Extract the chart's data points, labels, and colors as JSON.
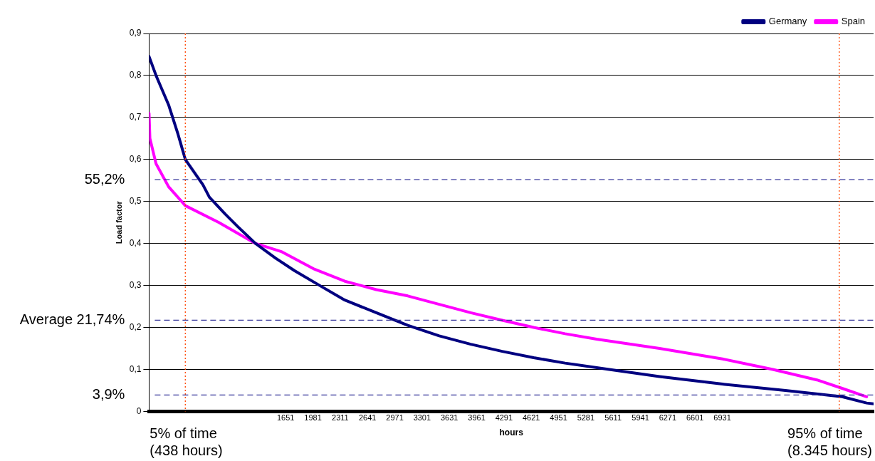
{
  "chart_data": {
    "type": "line",
    "xlabel": "hours",
    "ylabel": "Load factor",
    "xlim": [
      0,
      8760
    ],
    "xticks": [
      1651,
      1981,
      2311,
      2641,
      2971,
      3301,
      3631,
      3961,
      4291,
      4621,
      4951,
      5281,
      5611,
      5941,
      6271,
      6601,
      6931
    ],
    "ylim": [
      0,
      0.9
    ],
    "yticks": [
      0,
      {
        "value": 0.1,
        "label": "0,1"
      },
      {
        "value": 0.2,
        "label": "0,2"
      },
      {
        "value": 0.3,
        "label": "0,3"
      },
      {
        "value": 0.4,
        "label": "0,4"
      },
      {
        "value": 0.5,
        "label": "0,5"
      },
      {
        "value": 0.6,
        "label": "0,6"
      },
      {
        "value": 0.7,
        "label": "0,7"
      },
      {
        "value": 0.8,
        "label": "0,8"
      },
      {
        "value": 0.9,
        "label": "0,9"
      }
    ],
    "grid": "y",
    "legend": "top right",
    "marker": "none",
    "line_style": "solid",
    "series": [
      {
        "name": "Germany",
        "color": "#000080",
        "x": [
          0,
          84,
          236,
          350,
          438,
          650,
          730,
          920,
          1073,
          1286,
          1530,
          1760,
          2062,
          2367,
          2747,
          3128,
          3508,
          3889,
          4270,
          4650,
          5030,
          5563,
          6172,
          6933,
          7694,
          8379,
          8676,
          8760
        ],
        "values": [
          0.845,
          0.8,
          0.73,
          0.66,
          0.6,
          0.54,
          0.51,
          0.47,
          0.44,
          0.4,
          0.365,
          0.335,
          0.3,
          0.265,
          0.235,
          0.205,
          0.18,
          0.16,
          0.143,
          0.128,
          0.115,
          0.1,
          0.083,
          0.065,
          0.05,
          0.035,
          0.02,
          0.018
        ]
      },
      {
        "name": "Spain",
        "color": "#ff00ff",
        "x": [
          0,
          10,
          84,
          236,
          438,
          844,
          1286,
          1606,
          1986,
          2367,
          2747,
          3128,
          3508,
          3889,
          4270,
          4650,
          5030,
          5411,
          6172,
          6933,
          7542,
          8075,
          8379,
          8676
        ],
        "values": [
          0.71,
          0.65,
          0.59,
          0.535,
          0.49,
          0.45,
          0.4,
          0.38,
          0.34,
          0.31,
          0.29,
          0.275,
          0.255,
          0.235,
          0.217,
          0.2,
          0.185,
          0.172,
          0.15,
          0.125,
          0.1,
          0.075,
          0.055,
          0.035
        ]
      }
    ],
    "ref_lines": [
      {
        "axis": "x",
        "value": 438,
        "label": "5% of time (438 hours)",
        "color": "#ff4500",
        "line_style": "dotted"
      },
      {
        "axis": "x",
        "value": 8345,
        "label": "95% of time (8.345 hours)",
        "color": "#ff4500",
        "line_style": "dotted"
      },
      {
        "axis": "y",
        "value": 0.552,
        "label": "55,2%",
        "color": "#333399",
        "line_style": "dashed"
      },
      {
        "axis": "y",
        "value": 0.2174,
        "label": "Average 21,74%",
        "color": "#333399",
        "line_style": "dashed"
      },
      {
        "axis": "y",
        "value": 0.039,
        "label": "3,9%",
        "color": "#333399",
        "line_style": "dashed"
      }
    ]
  }
}
